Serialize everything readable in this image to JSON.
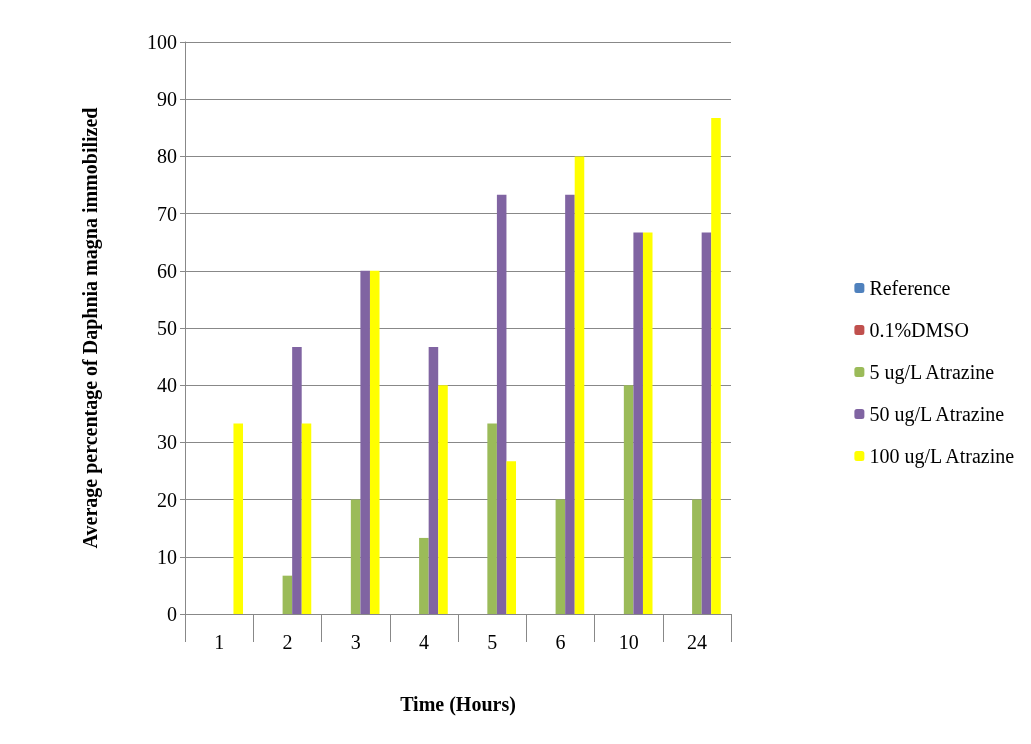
{
  "chart_data": {
    "type": "bar",
    "xlabel": "Time (Hours)",
    "ylabel": "Average percentage of Daphnia magna immobilized",
    "categories": [
      "1",
      "2",
      "3",
      "4",
      "5",
      "6",
      "10",
      "24"
    ],
    "series": [
      {
        "name": "Reference",
        "color": "#4f81bd",
        "values": [
          0,
          0,
          0,
          0,
          0,
          0,
          0,
          0
        ]
      },
      {
        "name": "0.1%DMSO",
        "color": "#c0504d",
        "values": [
          0,
          0,
          0,
          0,
          0,
          0,
          0,
          0
        ]
      },
      {
        "name": "5 ug/L Atrazine",
        "color": "#9bbb59",
        "values": [
          0,
          6.7,
          20,
          13.3,
          33.3,
          20,
          40,
          20
        ]
      },
      {
        "name": "50 ug/L Atrazine",
        "color": "#8064a2",
        "values": [
          0,
          46.7,
          60,
          46.7,
          73.3,
          73.3,
          66.7,
          66.7
        ]
      },
      {
        "name": "100 ug/L Atrazine",
        "color": "#ffff00",
        "values": [
          33.3,
          33.3,
          60,
          40,
          26.7,
          80,
          66.7,
          86.7
        ]
      }
    ],
    "ylim": [
      0,
      100
    ],
    "yticks": [
      0,
      10,
      20,
      30,
      40,
      50,
      60,
      70,
      80,
      90,
      100
    ],
    "grid": "y",
    "legend": "right"
  }
}
